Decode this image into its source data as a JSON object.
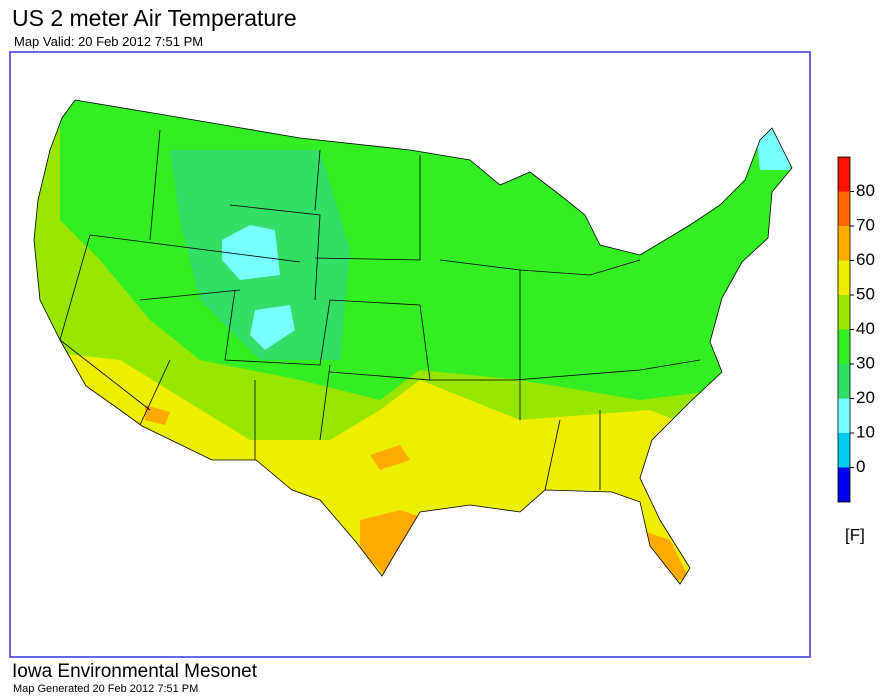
{
  "header": {
    "title": "US 2 meter Air Temperature",
    "subtitle": "Map Valid: 20 Feb 2012 7:51 PM"
  },
  "legend": {
    "lim": [
      -10,
      90
    ],
    "ticks": [
      0,
      10,
      20,
      30,
      40,
      50,
      60,
      70,
      80
    ],
    "unit": "[F]",
    "colors": [
      "#0000ee",
      "#00ccee",
      "#77ffff",
      "#33dd66",
      "#33ee22",
      "#99e600",
      "#eeee00",
      "#ffaa00",
      "#ff6600",
      "#ff1100"
    ]
  },
  "footer": {
    "organization": "Iowa Environmental Mesonet",
    "generated": "Map Generated 20 Feb 2012 7:51 PM"
  }
}
